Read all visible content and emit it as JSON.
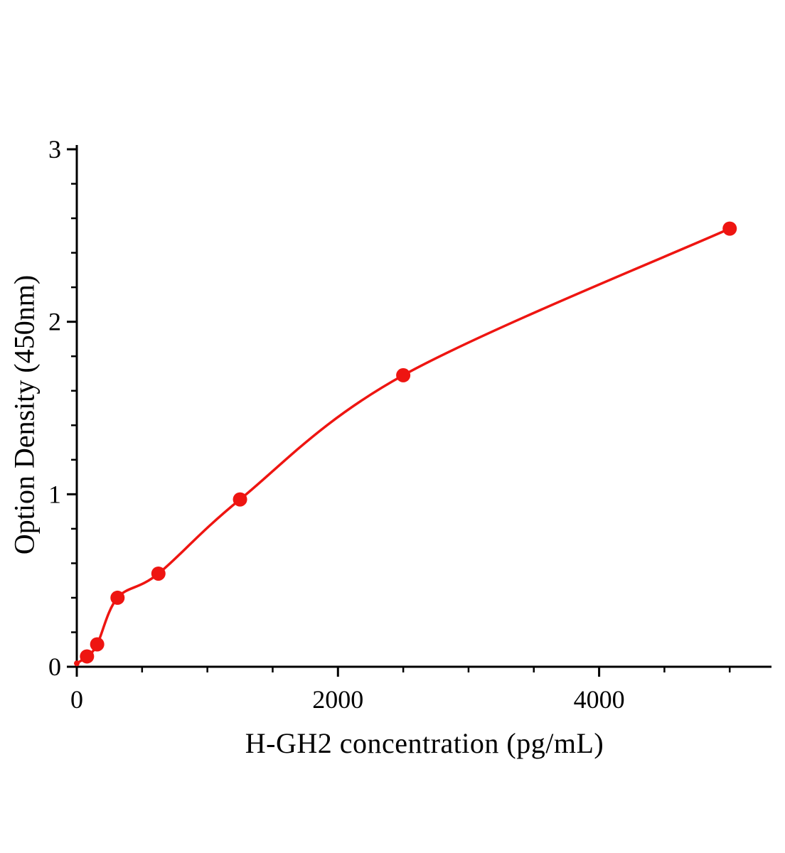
{
  "chart_data": {
    "type": "scatter",
    "title": "",
    "xlabel": "H-GH2 concentration (pg/mL)",
    "ylabel": "Option Density (450nm)",
    "x": [
      0,
      78,
      156,
      312,
      625,
      1250,
      2500,
      5000
    ],
    "y": [
      0.02,
      0.06,
      0.13,
      0.4,
      0.54,
      0.97,
      1.69,
      2.54
    ],
    "xlim": [
      0,
      5320
    ],
    "ylim": [
      0,
      3
    ],
    "x_major_ticks": [
      0,
      2000,
      4000
    ],
    "x_tick_labels": [
      "0",
      "2000",
      "4000"
    ],
    "x_minor_step": 500,
    "y_major_ticks": [
      0,
      1,
      2,
      3
    ],
    "y_tick_labels": [
      "0",
      "1",
      "2",
      "3"
    ],
    "y_minor_step": 0.2,
    "legend": "none",
    "grid": false,
    "curve": "smooth-fit-through-points",
    "point_color": "#ee1511",
    "line_color": "#ee1511",
    "axis_color": "#000000",
    "background_color": "#ffffff",
    "marker_radius": 10,
    "curve_width": 3.5
  }
}
